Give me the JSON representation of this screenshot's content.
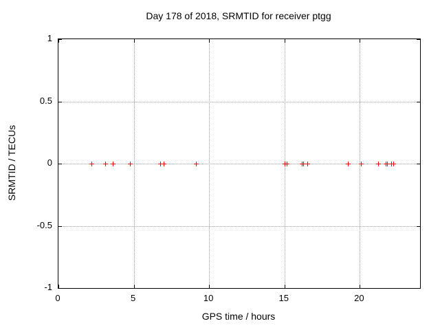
{
  "chart_data": {
    "type": "scatter",
    "title": "Day 178 of 2018, SRMTID for receiver ptgg",
    "xlabel": "GPS time / hours",
    "ylabel": "SRMTID / TECUs",
    "xlim": [
      0,
      24
    ],
    "ylim": [
      -1,
      1
    ],
    "x_ticks": [
      0,
      5,
      10,
      15,
      20
    ],
    "y_ticks": [
      1,
      0.5,
      0,
      -0.5,
      -1
    ],
    "grid": true,
    "legend_visible": false,
    "marker_style": "plus",
    "marker_color": "#ff0000",
    "grid_color": "#9b9b9b",
    "axis_color": "#000000",
    "background_color": "#ffffff",
    "series": [
      {
        "name": "SRMTID",
        "x": [
          2.2,
          3.12,
          3.62,
          4.76,
          6.78,
          6.99,
          9.17,
          15.05,
          15.18,
          16.16,
          16.27,
          16.55,
          19.21,
          20.11,
          21.26,
          21.75,
          21.84,
          22.09,
          22.25
        ],
        "y": [
          0,
          0,
          0,
          0,
          0,
          0,
          0,
          0,
          0,
          0,
          0,
          0,
          0,
          0,
          0,
          0,
          0,
          0,
          0
        ]
      }
    ]
  }
}
